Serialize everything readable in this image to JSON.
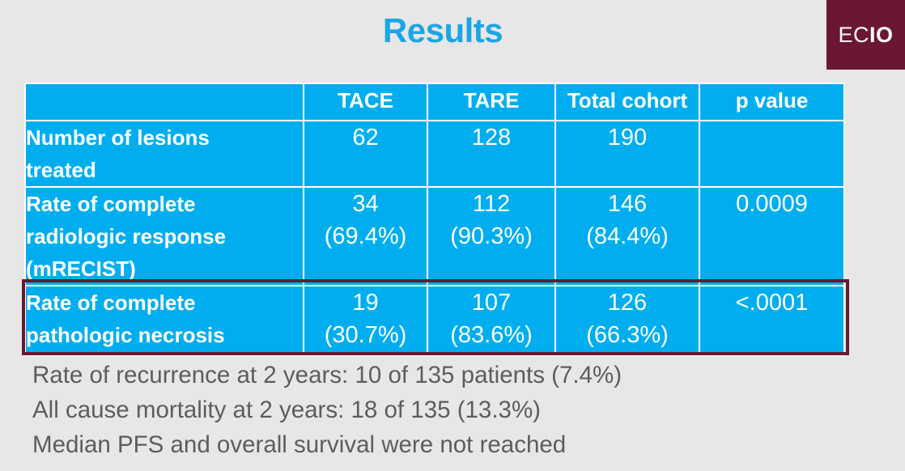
{
  "title": "Results",
  "logo": {
    "prefix": "EC",
    "bold": "IO"
  },
  "table": {
    "headers": [
      "",
      "TACE",
      "TARE",
      "Total cohort",
      "p value"
    ],
    "rows": [
      {
        "label_lines": [
          "Number of lesions",
          "treated"
        ],
        "tace": [
          "62"
        ],
        "tare": [
          "128"
        ],
        "total": [
          "190"
        ],
        "p": ""
      },
      {
        "label_lines": [
          "Rate of complete",
          "radiologic response",
          "(mRECIST)"
        ],
        "tace": [
          "34",
          "(69.4%)"
        ],
        "tare": [
          "112",
          "(90.3%)"
        ],
        "total": [
          "146",
          "(84.4%)"
        ],
        "p": "0.0009"
      },
      {
        "label_lines": [
          "Rate of complete",
          "pathologic necrosis"
        ],
        "tace": [
          "19",
          "(30.7%)"
        ],
        "tare": [
          "107",
          "(83.6%)"
        ],
        "total": [
          "126",
          "(66.3%)"
        ],
        "p": "<.0001"
      }
    ]
  },
  "notes": [
    "Rate of recurrence at 2 years: 10 of 135 patients (7.4%)",
    "All cause mortality at 2 years: 18 of 135 (13.3%)",
    "Median PFS and overall survival were not reached"
  ],
  "colors": {
    "accent": "#1aa6e6",
    "table_fill": "#00aeef",
    "brand": "#6b1633",
    "note_text": "#5d5d5d"
  }
}
